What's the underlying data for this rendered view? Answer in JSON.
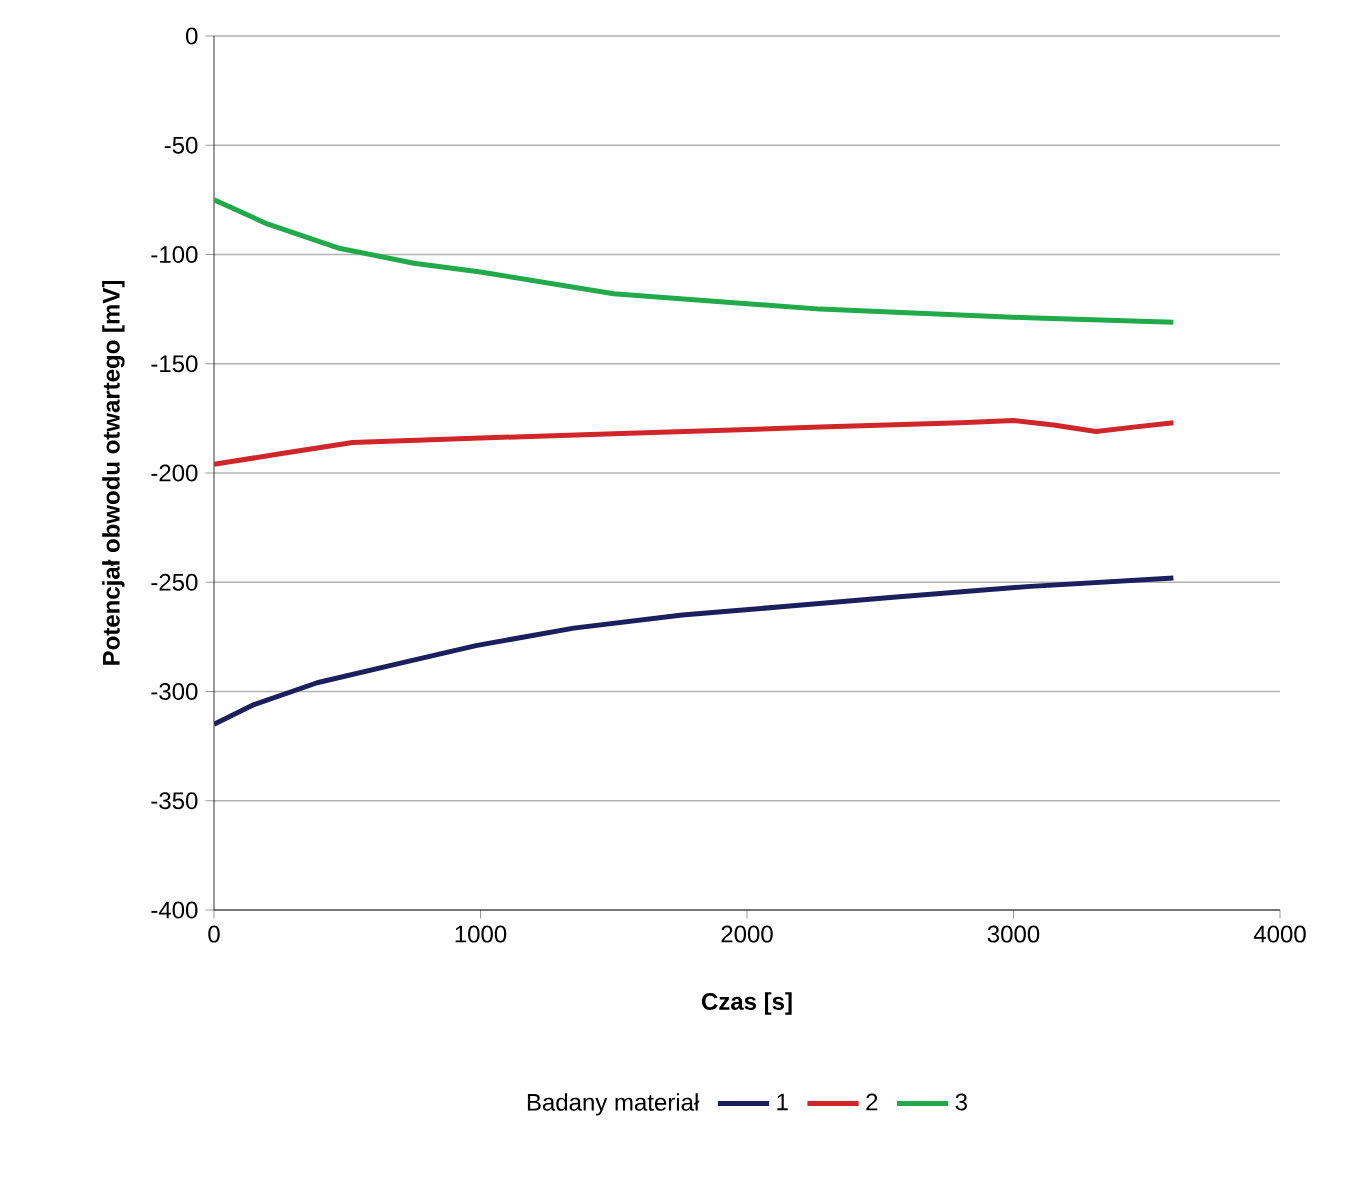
{
  "chart_data": {
    "type": "line",
    "xlabel": "Czas [s]",
    "ylabel": "Potencjał obwodu otwartego [mV]",
    "legend_title": "Badany materiał",
    "xlim": [
      0,
      4000
    ],
    "xticks": [
      0,
      1000,
      2000,
      3000,
      4000
    ],
    "ylim": [
      -400,
      0
    ],
    "yticks": [
      -400,
      -350,
      -300,
      -250,
      -200,
      -150,
      -100,
      -50,
      0
    ],
    "grid": "y",
    "legend": "bottom",
    "marker": "none",
    "line_style": "solid",
    "series": [
      {
        "name": "1",
        "color": "#1b1f5e",
        "x": [
          0,
          150,
          387,
          700,
          983,
          1350,
          1757,
          2150,
          2537,
          3050,
          3600
        ],
        "values": [
          -315,
          -306,
          -296,
          -287,
          -279,
          -271,
          -265,
          -261,
          -257,
          -252,
          -248
        ]
      },
      {
        "name": "2",
        "color": "#d0262a",
        "x": [
          0,
          260,
          520,
          1000,
          1500,
          2275,
          2800,
          3000,
          3150,
          3310,
          3450,
          3600
        ],
        "values": [
          -196,
          -191,
          -186,
          -184,
          -182,
          -179,
          -177,
          -176,
          -178,
          -181,
          -179,
          -177
        ]
      },
      {
        "name": "3",
        "color": "#21a94a",
        "x": [
          0,
          200,
          465,
          750,
          1000,
          1500,
          2275,
          3055,
          3600
        ],
        "values": [
          -75,
          -86,
          -97,
          -104,
          -108,
          -118,
          -125,
          -129,
          -131
        ]
      }
    ]
  }
}
